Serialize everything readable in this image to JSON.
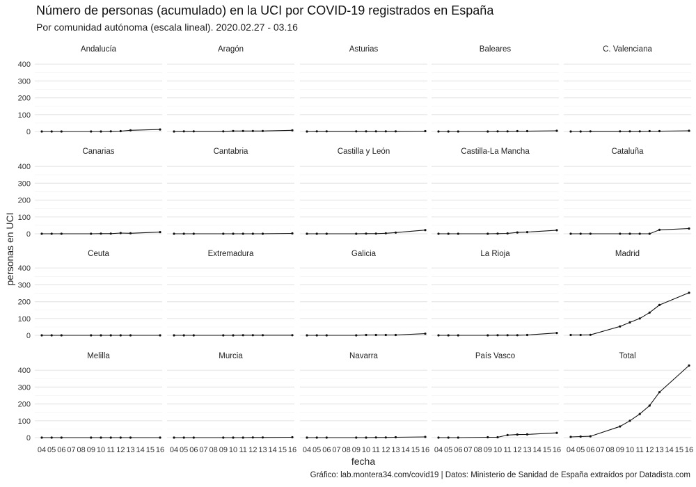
{
  "title": "Número de personas (acumulado) en la UCI por COVID-19 registrados en España",
  "subtitle": "Por comunidad autónoma (escala lineal). 2020.02.27 - 03.16",
  "caption": "Gráfico: lab.montera34.com/covid19 | Datos: Ministerio de Sanidad de España extraídos por Datadista.com",
  "chart_data": {
    "type": "line",
    "facet": "small-multiples",
    "xlabel": "fecha",
    "ylabel": "personas en UCI",
    "x_ticks": [
      "04",
      "05",
      "06",
      "07",
      "08",
      "09",
      "10",
      "11",
      "12",
      "13",
      "14",
      "15",
      "16"
    ],
    "y_ticks": [
      0,
      100,
      200,
      300,
      400
    ],
    "ylim": [
      0,
      450
    ],
    "grid": true,
    "x": [
      4,
      5,
      6,
      9,
      10,
      11,
      12,
      13,
      16
    ],
    "series": [
      {
        "name": "Andalucía",
        "values": [
          0,
          0,
          0,
          0,
          0,
          1,
          2,
          7,
          12
        ]
      },
      {
        "name": "Aragón",
        "values": [
          0,
          1,
          1,
          1,
          3,
          3,
          3,
          3,
          7
        ]
      },
      {
        "name": "Asturias",
        "values": [
          0,
          1,
          1,
          1,
          1,
          1,
          1,
          1,
          2
        ]
      },
      {
        "name": "Baleares",
        "values": [
          0,
          0,
          0,
          0,
          1,
          1,
          2,
          2,
          4
        ]
      },
      {
        "name": "C. Valenciana",
        "values": [
          0,
          0,
          1,
          1,
          1,
          1,
          2,
          2,
          4
        ]
      },
      {
        "name": "Canarias",
        "values": [
          0,
          0,
          0,
          0,
          1,
          1,
          4,
          3,
          10
        ]
      },
      {
        "name": "Cantabria",
        "values": [
          0,
          0,
          0,
          0,
          0,
          0,
          0,
          0,
          2
        ]
      },
      {
        "name": "Castilla y León",
        "values": [
          0,
          0,
          0,
          0,
          1,
          1,
          3,
          7,
          22
        ]
      },
      {
        "name": "Castilla-La Mancha",
        "values": [
          0,
          0,
          0,
          0,
          1,
          2,
          8,
          10,
          21
        ]
      },
      {
        "name": "Cataluña",
        "values": [
          0,
          0,
          0,
          0,
          0,
          0,
          0,
          23,
          31
        ]
      },
      {
        "name": "Ceuta",
        "values": [
          0,
          0,
          0,
          0,
          0,
          0,
          0,
          0,
          0
        ]
      },
      {
        "name": "Extremadura",
        "values": [
          0,
          0,
          0,
          0,
          0,
          1,
          1,
          1,
          1
        ]
      },
      {
        "name": "Galicia",
        "values": [
          0,
          0,
          0,
          0,
          2,
          2,
          2,
          2,
          10
        ]
      },
      {
        "name": "La Rioja",
        "values": [
          0,
          0,
          0,
          0,
          1,
          1,
          1,
          2,
          14
        ]
      },
      {
        "name": "Madrid",
        "values": [
          2,
          2,
          3,
          53,
          77,
          100,
          135,
          180,
          253
        ]
      },
      {
        "name": "Melilla",
        "values": [
          0,
          0,
          0,
          0,
          0,
          0,
          0,
          0,
          0
        ]
      },
      {
        "name": "Murcia",
        "values": [
          0,
          0,
          0,
          0,
          0,
          0,
          1,
          1,
          2
        ]
      },
      {
        "name": "Navarra",
        "values": [
          0,
          0,
          0,
          0,
          0,
          1,
          1,
          2,
          4
        ]
      },
      {
        "name": "País Vasco",
        "values": [
          0,
          0,
          0,
          2,
          2,
          15,
          18,
          19,
          28
        ]
      },
      {
        "name": "Total",
        "values": [
          4,
          6,
          8,
          66,
          100,
          140,
          190,
          270,
          428
        ]
      }
    ]
  }
}
